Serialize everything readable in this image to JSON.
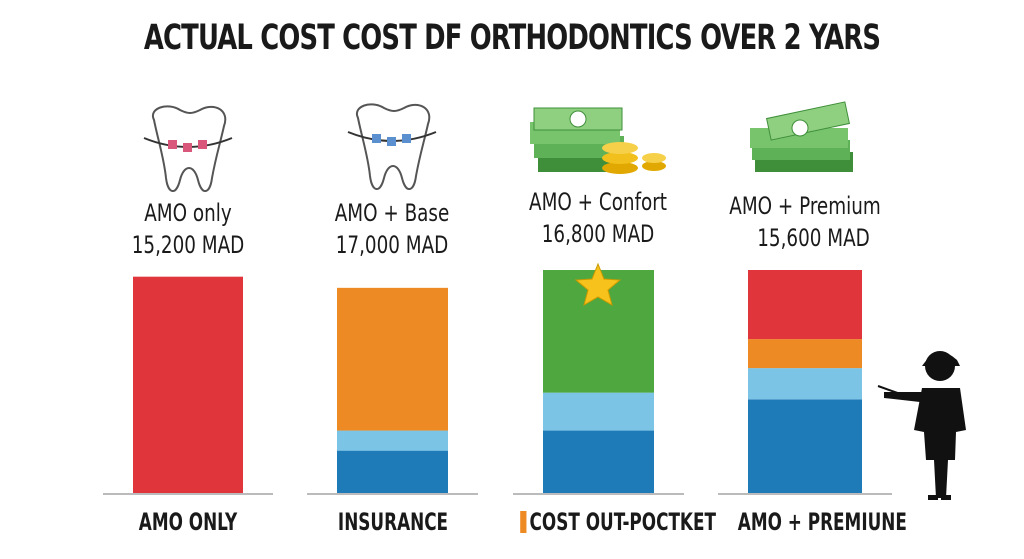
{
  "title": "ACTUAL COST COST DF ORTHODONTICS OVER 2 YARS",
  "chart_data": {
    "type": "bar",
    "stacked": true,
    "value_unit": "percent of tallest bar height (no axis shown)",
    "grid": false,
    "bars": [
      {
        "plan": "AMO only",
        "price": "15,200 MAD",
        "category": "AMO ONLY",
        "icon": "tooth-braces-icon",
        "segments": [
          {
            "color": "#e0353b",
            "value": 97
          }
        ]
      },
      {
        "plan": "AMO + Base",
        "price": "17,000 MAD",
        "category": "INSURANCE",
        "icon": "tooth-braces-icon",
        "segments": [
          {
            "color": "#1f7ab8",
            "value": 19
          },
          {
            "color": "#7cc4e6",
            "value": 9
          },
          {
            "color": "#ee8a23",
            "value": 64
          }
        ]
      },
      {
        "plan": "AMO + Confort",
        "price": "16,800 MAD",
        "category": "COST OUT-POCTKET",
        "icon": "money-coins-icon",
        "star": true,
        "segments": [
          {
            "color": "#1f7ab8",
            "value": 28
          },
          {
            "color": "#7cc4e6",
            "value": 17
          },
          {
            "color": "#4ea83f",
            "value": 55
          }
        ]
      },
      {
        "plan": "AMO + Premium",
        "price": "15,600 MAD",
        "category": "AMO + PREMIUNE",
        "icon": "money-stack-icon",
        "segments": [
          {
            "color": "#1f7ab8",
            "value": 42
          },
          {
            "color": "#7cc4e6",
            "value": 14
          },
          {
            "color": "#ee8a23",
            "value": 13
          },
          {
            "color": "#e0353b",
            "value": 31
          }
        ]
      }
    ],
    "legend_swatch_color": "#ee8a23"
  }
}
